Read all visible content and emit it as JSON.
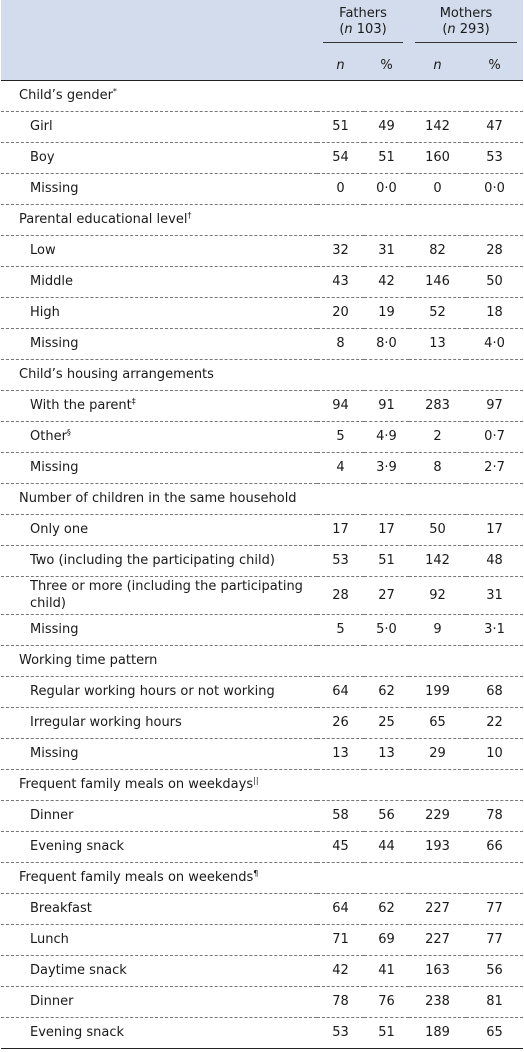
{
  "header": {
    "fathers_label": "Fathers",
    "fathers_n": "(n 103)",
    "mothers_label": "Mothers",
    "mothers_n": "(n 293)",
    "col_n": "n",
    "col_pct": "%"
  },
  "sections": [
    {
      "title": "Child’s gender",
      "mark": "*",
      "rows": [
        {
          "label": "Girl",
          "mark": "",
          "fn": "51",
          "fp": "49",
          "mn": "142",
          "mp": "47"
        },
        {
          "label": "Boy",
          "mark": "",
          "fn": "54",
          "fp": "51",
          "mn": "160",
          "mp": "53"
        },
        {
          "label": "Missing",
          "mark": "",
          "fn": "0",
          "fp": "0·0",
          "mn": "0",
          "mp": "0·0"
        }
      ]
    },
    {
      "title": "Parental educational level",
      "mark": "†",
      "rows": [
        {
          "label": "Low",
          "mark": "",
          "fn": "32",
          "fp": "31",
          "mn": "82",
          "mp": "28"
        },
        {
          "label": "Middle",
          "mark": "",
          "fn": "43",
          "fp": "42",
          "mn": "146",
          "mp": "50"
        },
        {
          "label": "High",
          "mark": "",
          "fn": "20",
          "fp": "19",
          "mn": "52",
          "mp": "18"
        },
        {
          "label": "Missing",
          "mark": "",
          "fn": "8",
          "fp": "8·0",
          "mn": "13",
          "mp": "4·0"
        }
      ]
    },
    {
      "title": "Child’s housing arrangements",
      "mark": "",
      "rows": [
        {
          "label": "With the parent",
          "mark": "‡",
          "fn": "94",
          "fp": "91",
          "mn": "283",
          "mp": "97"
        },
        {
          "label": "Other",
          "mark": "§",
          "fn": "5",
          "fp": "4·9",
          "mn": "2",
          "mp": "0·7"
        },
        {
          "label": "Missing",
          "mark": "",
          "fn": "4",
          "fp": "3·9",
          "mn": "8",
          "mp": "2·7"
        }
      ]
    },
    {
      "title": "Number of children in the same household",
      "mark": "",
      "rows": [
        {
          "label": "Only one",
          "mark": "",
          "fn": "17",
          "fp": "17",
          "mn": "50",
          "mp": "17"
        },
        {
          "label": "Two (including the participating child)",
          "mark": "",
          "fn": "53",
          "fp": "51",
          "mn": "142",
          "mp": "48"
        },
        {
          "label": "Three or more (including the participating child)",
          "mark": "",
          "fn": "28",
          "fp": "27",
          "mn": "92",
          "mp": "31",
          "tall": true
        },
        {
          "label": "Missing",
          "mark": "",
          "fn": "5",
          "fp": "5·0",
          "mn": "9",
          "mp": "3·1"
        }
      ]
    },
    {
      "title": "Working time pattern",
      "mark": "",
      "rows": [
        {
          "label": "Regular working hours or not working",
          "mark": "",
          "fn": "64",
          "fp": "62",
          "mn": "199",
          "mp": "68"
        },
        {
          "label": "Irregular working hours",
          "mark": "",
          "fn": "26",
          "fp": "25",
          "mn": "65",
          "mp": "22"
        },
        {
          "label": "Missing",
          "mark": "",
          "fn": "13",
          "fp": "13",
          "mn": "29",
          "mp": "10"
        }
      ]
    },
    {
      "title": "Frequent family meals on weekdays",
      "mark": "||",
      "rows": [
        {
          "label": "Dinner",
          "mark": "",
          "fn": "58",
          "fp": "56",
          "mn": "229",
          "mp": "78"
        },
        {
          "label": "Evening snack",
          "mark": "",
          "fn": "45",
          "fp": "44",
          "mn": "193",
          "mp": "66"
        }
      ]
    },
    {
      "title": "Frequent family meals on weekends",
      "mark": "¶",
      "rows": [
        {
          "label": "Breakfast",
          "mark": "",
          "fn": "64",
          "fp": "62",
          "mn": "227",
          "mp": "77"
        },
        {
          "label": "Lunch",
          "mark": "",
          "fn": "71",
          "fp": "69",
          "mn": "227",
          "mp": "77"
        },
        {
          "label": "Daytime snack",
          "mark": "",
          "fn": "42",
          "fp": "41",
          "mn": "163",
          "mp": "56"
        },
        {
          "label": "Dinner",
          "mark": "",
          "fn": "78",
          "fp": "76",
          "mn": "238",
          "mp": "81"
        },
        {
          "label": "Evening snack",
          "mark": "",
          "fn": "53",
          "fp": "51",
          "mn": "189",
          "mp": "65"
        }
      ]
    }
  ]
}
